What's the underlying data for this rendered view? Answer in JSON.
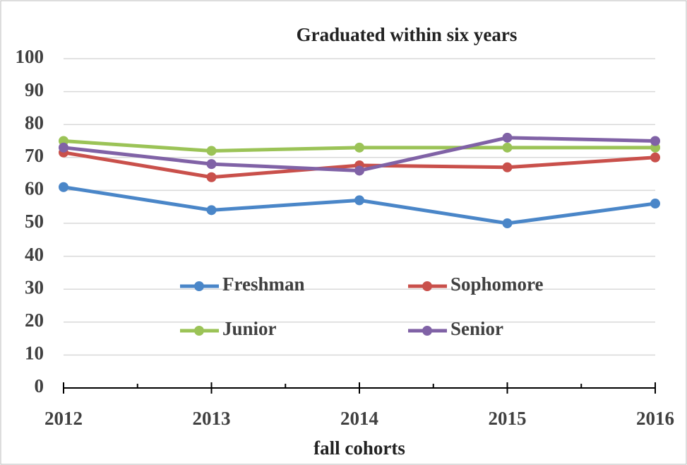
{
  "chart_data": {
    "type": "line",
    "title": "Graduated within six years",
    "x_label": "fall cohorts",
    "categories": [
      "2012",
      "2013",
      "2014",
      "2015",
      "2016"
    ],
    "series": [
      {
        "name": "Freshman",
        "color": "#4a86c8",
        "values": [
          61,
          54,
          57,
          50,
          56
        ]
      },
      {
        "name": "Sophomore",
        "color": "#c9504b",
        "values": [
          71.5,
          64,
          67.6,
          67,
          70
        ]
      },
      {
        "name": "Junior",
        "color": "#9bc357",
        "values": [
          75,
          72,
          73,
          73,
          73
        ]
      },
      {
        "name": "Senior",
        "color": "#8062a6",
        "values": [
          73,
          68,
          66,
          76,
          75
        ]
      }
    ],
    "ylim": [
      0,
      100
    ],
    "yticks": [
      0,
      10,
      20,
      30,
      40,
      50,
      60,
      70,
      80,
      90,
      100
    ],
    "grid": true,
    "legend_position": "center"
  }
}
